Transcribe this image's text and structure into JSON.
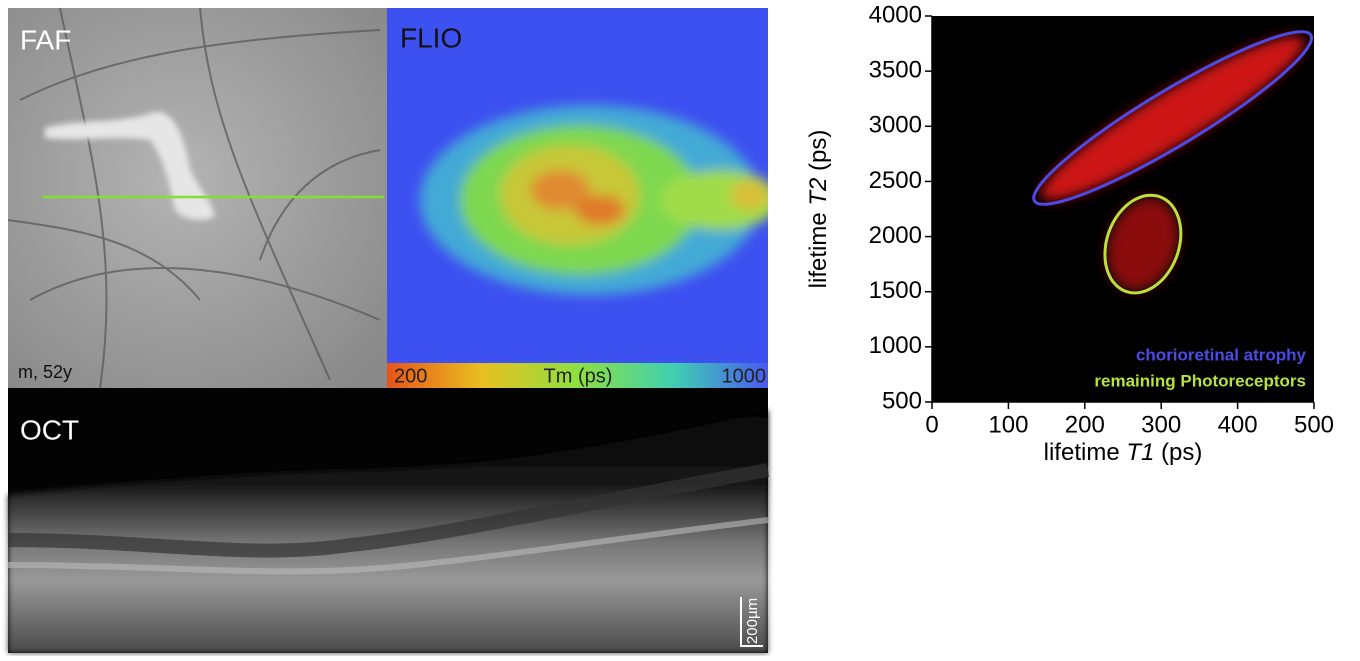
{
  "panels": {
    "faf": {
      "label": "FAF",
      "caption": "m, 52y"
    },
    "flio": {
      "label": "FLIO",
      "colorbar": {
        "min_label": "200",
        "title": "Tm (ps)",
        "max_label": "1000"
      }
    },
    "oct": {
      "label": "OCT",
      "scalebar": "200µm"
    }
  },
  "chart_data": {
    "type": "scatter",
    "xlabel": [
      "lifetime ",
      "T1",
      " (ps)"
    ],
    "ylabel": [
      "lifetime ",
      "T2",
      " (ps)"
    ],
    "xlim": [
      0,
      500
    ],
    "xticks": [
      0,
      100,
      200,
      300,
      400,
      500
    ],
    "ylim": [
      500,
      4000
    ],
    "yticks": [
      500,
      1000,
      1500,
      2000,
      2500,
      3000,
      3500,
      4000
    ],
    "background": "#000000",
    "series": [
      {
        "name": "chorioretinal atrophy",
        "color": "#4b4be8",
        "cloud_color": "#d81414",
        "center": [
          315,
          3075
        ],
        "major_end": [
          496,
          3827
        ],
        "minor_end": [
          333,
          2857
        ]
      },
      {
        "name": "remaining Photoreceptors",
        "color": "#b9e23c",
        "cloud_color": "#b81010",
        "center": [
          276,
          1932
        ],
        "major_end": [
          299,
          2359
        ],
        "minor_end": [
          320,
          1815
        ]
      }
    ]
  }
}
